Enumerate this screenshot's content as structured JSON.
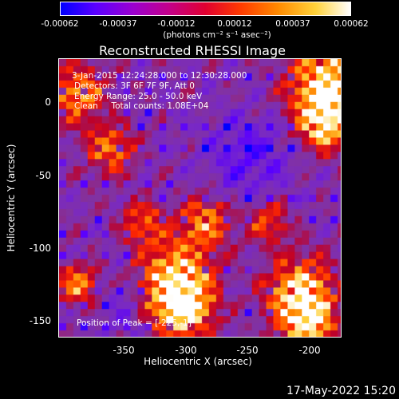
{
  "colorbar": {
    "ticks": [
      "-0.00062",
      "-0.00037",
      "-0.00012",
      "0.00012",
      "0.00037",
      "0.00062"
    ],
    "units": "(photons cm⁻² s⁻¹ asec⁻²)"
  },
  "plot": {
    "title": "Reconstructed RHESSI Image",
    "info": {
      "time": "3-Jan-2015 12:24:28.000 to 12:30:28.000",
      "detectors": "Detectors: 3F 6F 7F 9F, Att 0",
      "energy": "Energy Range: 25.0 - 50.0 keV",
      "method": "Clean     Total counts: 1.08E+04"
    },
    "peak": "Position of Peak = [-225,-1]",
    "xlabel": "Heliocentric X (arcsec)",
    "ylabel": "Heliocentric Y (arcsec)",
    "xticks": [
      "-350",
      "-300",
      "-250",
      "-200"
    ],
    "yticks": [
      "0",
      "-50",
      "-100",
      "-150"
    ]
  },
  "datestamp": "17-May-2022 15:20"
}
